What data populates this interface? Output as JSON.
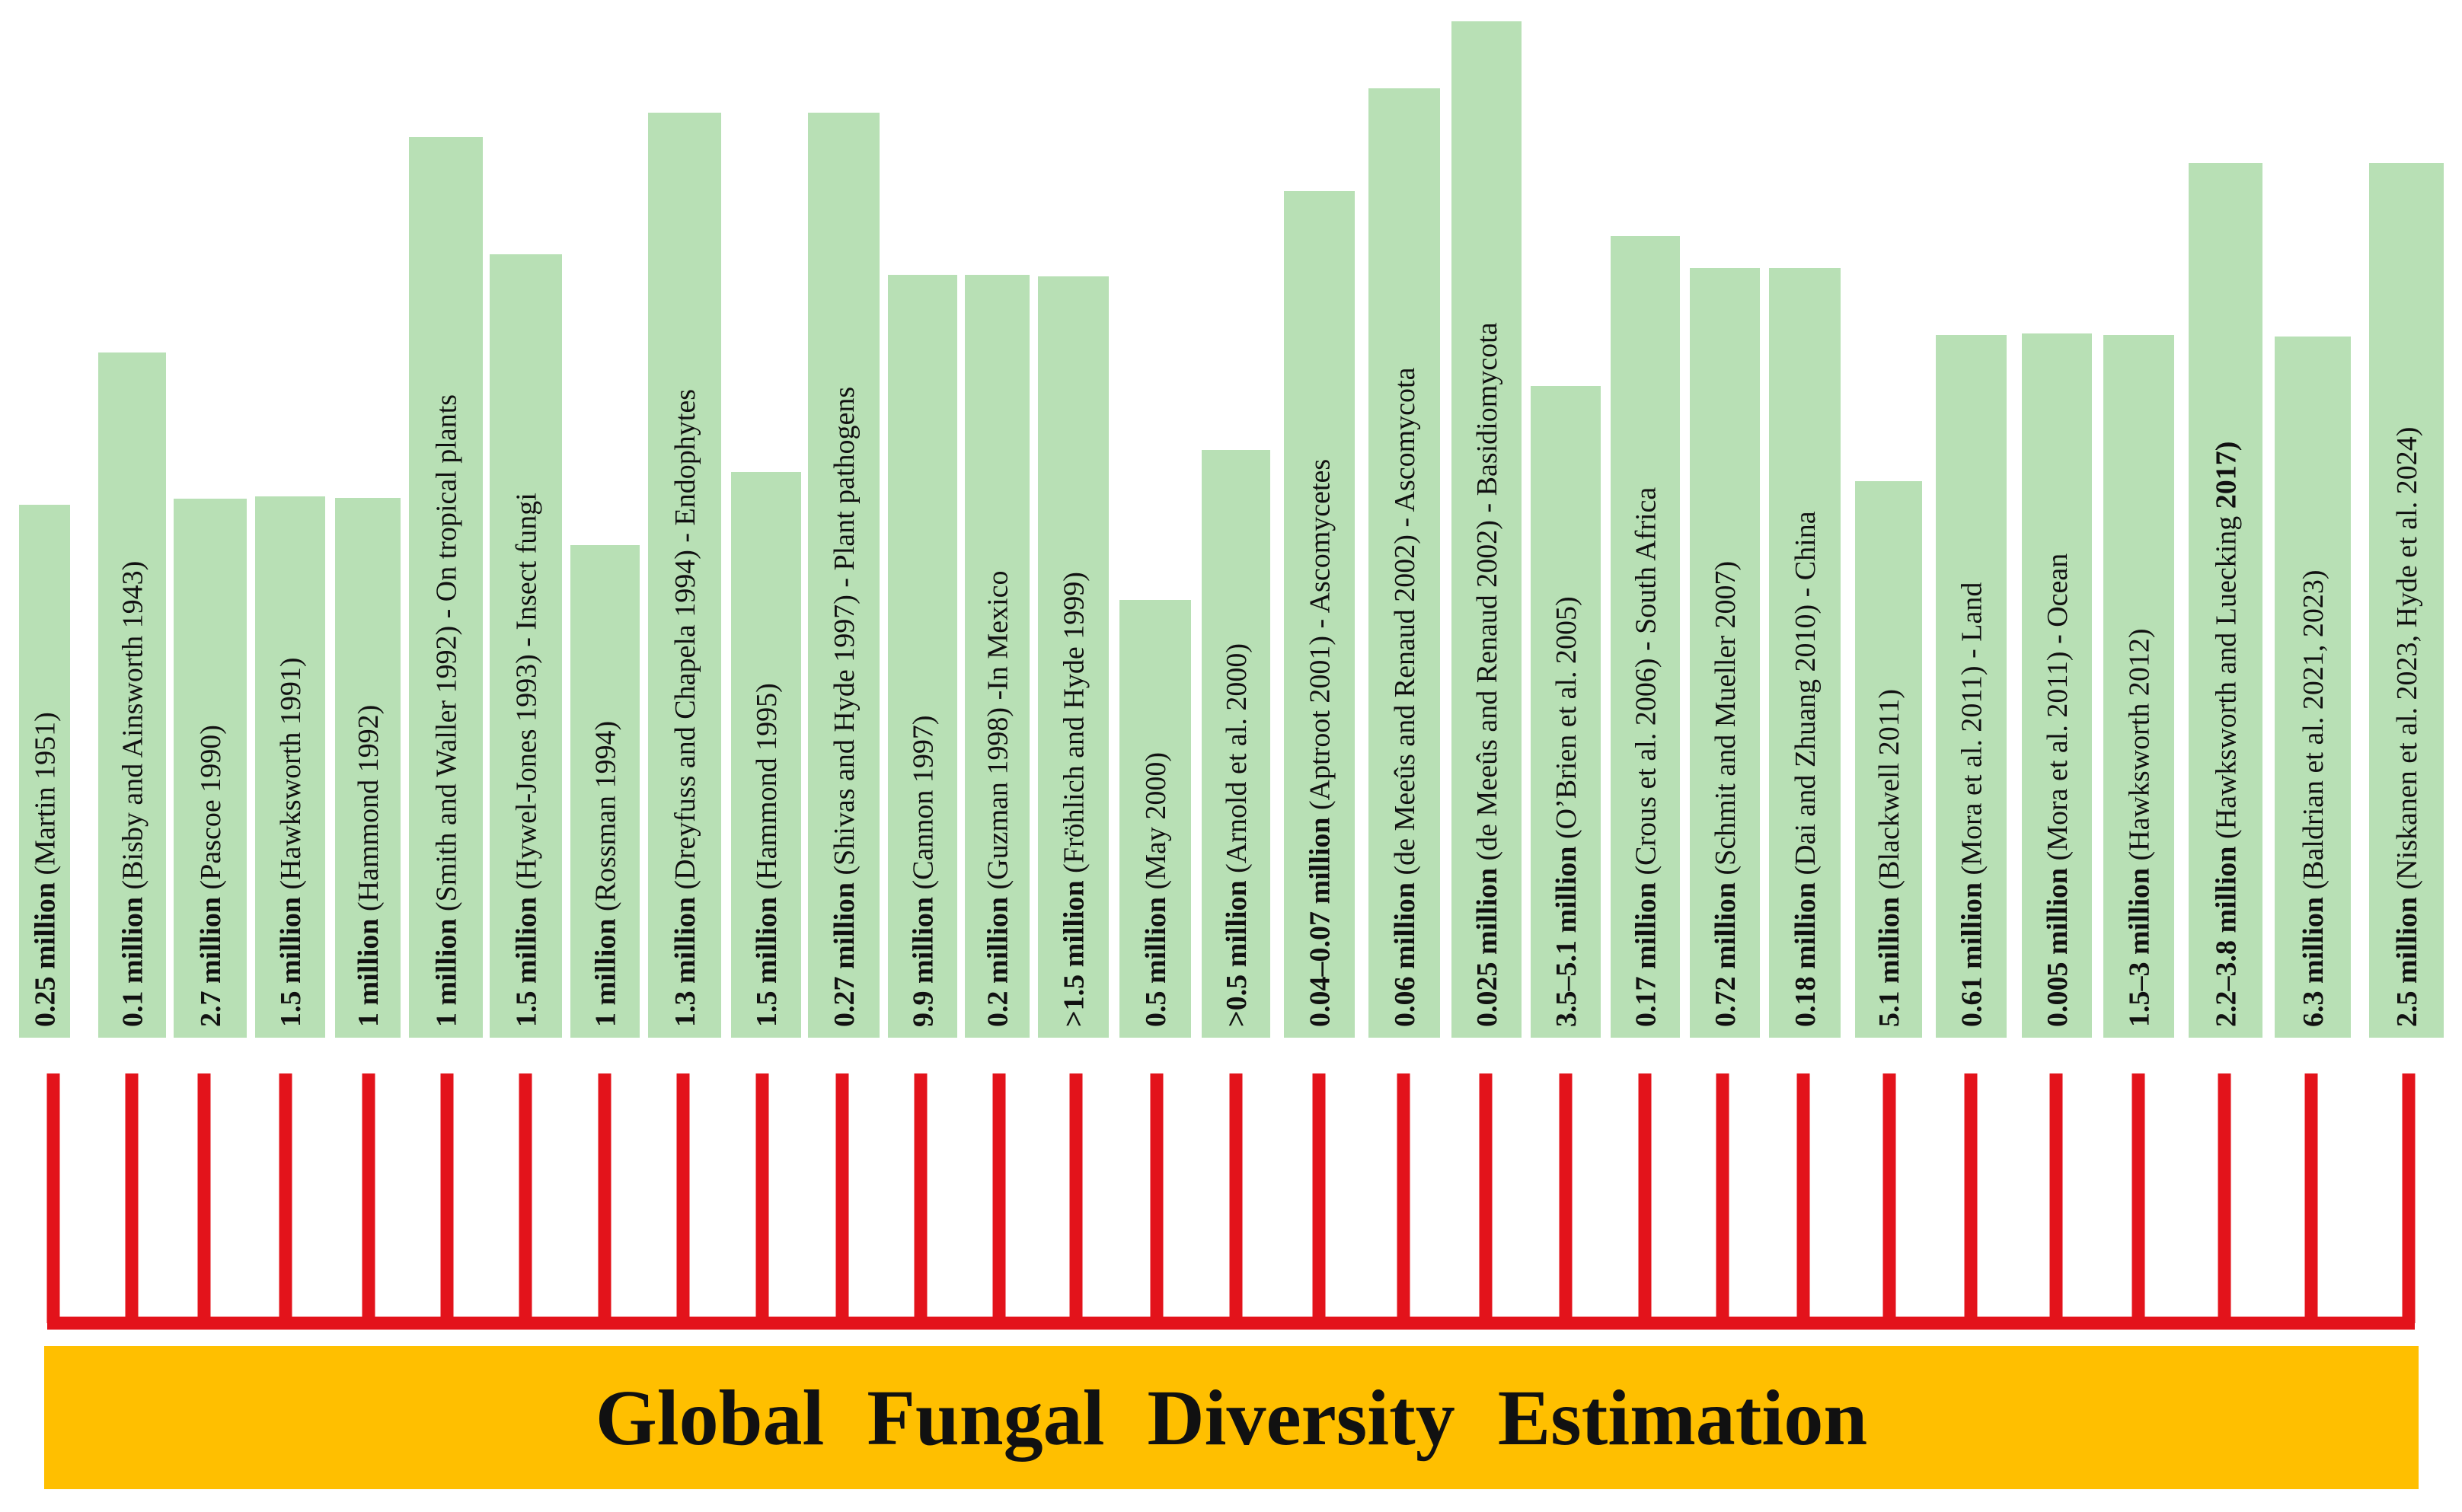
{
  "banner": {
    "title": "Global Fungal Diversity Estimation",
    "color": "#ffbf00"
  },
  "colors": {
    "bar": "#b8e0b5",
    "connector": "#e3131b",
    "text": "#111111"
  },
  "estimates": [
    {
      "value": "0.25 million",
      "rest": " (Martin 1951)",
      "bold_suffix": ""
    },
    {
      "value": "0.1 million",
      "rest": " (Bisby and Ainsworth 1943)",
      "bold_suffix": ""
    },
    {
      "value": "2.7 million",
      "rest": " (Pascoe 1990)",
      "bold_suffix": ""
    },
    {
      "value": "1.5 million",
      "rest": " (Hawksworth 1991)",
      "bold_suffix": ""
    },
    {
      "value": "1 million",
      "rest": " (Hammond 1992)",
      "bold_suffix": ""
    },
    {
      "value": "1 million",
      "rest": " (Smith and Waller 1992) - On tropical plants",
      "bold_suffix": ""
    },
    {
      "value": "1.5 million",
      "rest": " (Hywel-Jones 1993) - Insect fungi",
      "bold_suffix": ""
    },
    {
      "value": "1 million",
      "rest": " (Rossman 1994)",
      "bold_suffix": ""
    },
    {
      "value": "1.3 million",
      "rest": " (Dreyfuss and Chapela 1994) - Endophytes",
      "bold_suffix": ""
    },
    {
      "value": "1.5 million",
      "rest": " (Hammond 1995)",
      "bold_suffix": ""
    },
    {
      "value": "0.27 million",
      "rest": " (Shivas and Hyde 1997) - Plant pathogens",
      "bold_suffix": ""
    },
    {
      "value": "9.9 million",
      "rest": " (Cannon 1997)",
      "bold_suffix": ""
    },
    {
      "value": "0.2 million",
      "rest": " (Guzman 1998) -In Mexico",
      "bold_suffix": ""
    },
    {
      "value": ">1.5 million",
      "rest": " (Fröhlich and Hyde 1999)",
      "bold_suffix": ""
    },
    {
      "value": "0.5 million",
      "rest": " (May 2000)",
      "bold_suffix": ""
    },
    {
      "value": ">0.5 million",
      "rest": " (Arnold et al. 2000)",
      "bold_suffix": ""
    },
    {
      "value": "0.04–0.07 million",
      "rest": " (Aptroot 2001) - Ascomycetes",
      "bold_suffix": ""
    },
    {
      "value": "0.06 million",
      "rest": " (de Meeûs and Renaud 2002) - Ascomycota",
      "bold_suffix": ""
    },
    {
      "value": "0.025 million",
      "rest": " (de Meeûs and Renaud 2002) - Basidiomycota",
      "bold_suffix": ""
    },
    {
      "value": "3.5–5.1 million",
      "rest": " (O’Brien et al. 2005)",
      "bold_suffix": ""
    },
    {
      "value": "0.17 million",
      "rest": " (Crous et al. 2006) - South Africa",
      "bold_suffix": ""
    },
    {
      "value": "0.72 million",
      "rest": " (Schmit and Mueller 2007)",
      "bold_suffix": ""
    },
    {
      "value": "0.18 million",
      "rest": " (Dai and Zhuang 2010) - China",
      "bold_suffix": ""
    },
    {
      "value": "5.1 million",
      "rest": " (Blackwell 2011)",
      "bold_suffix": ""
    },
    {
      "value": "0.61 million",
      "rest": " (Mora et al. 2011) - Land",
      "bold_suffix": ""
    },
    {
      "value": "0.005 million",
      "rest": " (Mora et al. 2011) - Ocean",
      "bold_suffix": ""
    },
    {
      "value": "1.5–3 million",
      "rest": " (Hawksworth 2012)",
      "bold_suffix": ""
    },
    {
      "value": "2.2–3.8 million",
      "rest": " (Hawksworth and Luecking ",
      "bold_suffix": "2017)"
    },
    {
      "value": "6.3 million",
      "rest": " (Baldrian et al. 2021, 2023)",
      "bold_suffix": ""
    },
    {
      "value": "2.5 million",
      "rest": " (Niskanen et al. 2023, Hyde et al. 2024)",
      "bold_suffix": ""
    }
  ]
}
